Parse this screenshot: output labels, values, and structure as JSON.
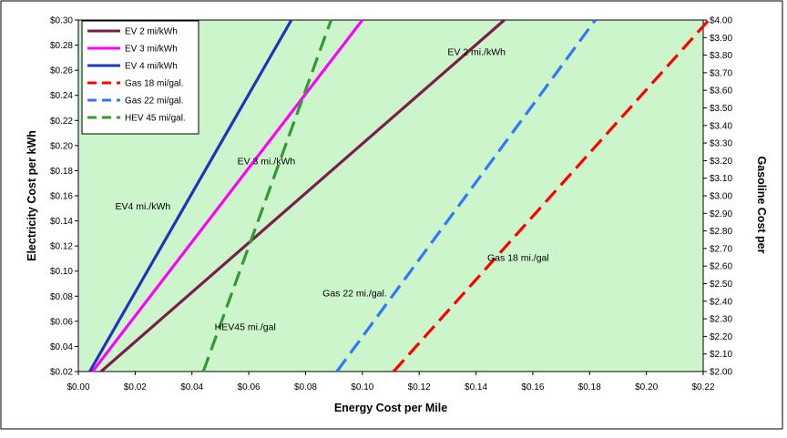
{
  "chart_data": {
    "type": "line",
    "xlabel": "Energy Cost per Mile",
    "ylabel_left": "Electricity Cost per kWh",
    "ylabel_right": "Gasoline Cost per",
    "xlim": [
      0,
      0.22
    ],
    "ylim_left": [
      0.02,
      0.3
    ],
    "ylim_right": [
      2.0,
      4.0
    ],
    "x_ticks": [
      "$0.00",
      "$0.02",
      "$0.04",
      "$0.06",
      "$0.08",
      "$0.10",
      "$0.12",
      "$0.14",
      "$0.16",
      "$0.18",
      "$0.20",
      "$0.22"
    ],
    "y_left_ticks": [
      "$0.02",
      "$0.04",
      "$0.06",
      "$0.08",
      "$0.10",
      "$0.12",
      "$0.14",
      "$0.16",
      "$0.18",
      "$0.20",
      "$0.22",
      "$0.24",
      "$0.26",
      "$0.28",
      "$0.30"
    ],
    "y_right_ticks": [
      "$2.00",
      "$2.10",
      "$2.20",
      "$2.30",
      "$2.40",
      "$2.50",
      "$2.60",
      "$2.70",
      "$2.80",
      "$2.90",
      "$3.00",
      "$3.10",
      "$3.20",
      "$3.30",
      "$3.40",
      "$3.50",
      "$3.60",
      "$3.70",
      "$3.80",
      "$3.90",
      "$4.00"
    ],
    "grid": false,
    "background": "#ccf5cc",
    "legend_position": "top-left",
    "series": [
      {
        "name": "EV 2 mi/kWh",
        "axis": "left",
        "style": "solid",
        "color": "#7a1f4a",
        "points": [
          [
            0.008,
            0.02
          ],
          [
            0.15,
            0.3
          ]
        ]
      },
      {
        "name": "EV 3 mi/kWh",
        "axis": "left",
        "style": "solid",
        "color": "#ff00ff",
        "points": [
          [
            0.005,
            0.02
          ],
          [
            0.1,
            0.3
          ]
        ]
      },
      {
        "name": "EV 4 mi/kWh",
        "axis": "left",
        "style": "solid",
        "color": "#2233bb",
        "points": [
          [
            0.004,
            0.02
          ],
          [
            0.075,
            0.3
          ]
        ]
      },
      {
        "name": "Gas 18 mi/gal.",
        "axis": "right",
        "style": "dashed",
        "color": "#ff0000",
        "points": [
          [
            0.111,
            2.0
          ],
          [
            0.222,
            4.0
          ]
        ]
      },
      {
        "name": "Gas 22 mi/gal.",
        "axis": "right",
        "style": "dashed",
        "color": "#3377ff",
        "points": [
          [
            0.091,
            2.0
          ],
          [
            0.182,
            4.0
          ]
        ]
      },
      {
        "name": "HEV 45 mi/gal.",
        "axis": "right",
        "style": "dashed",
        "color": "#339933",
        "points": [
          [
            0.044,
            2.0
          ],
          [
            0.089,
            4.0
          ]
        ]
      }
    ],
    "annotations": [
      {
        "text": "EV 2 mi./kWh",
        "x": 0.13,
        "y": 0.272
      },
      {
        "text": "EV 3 mi./kWh",
        "x": 0.056,
        "y": 0.185
      },
      {
        "text": "EV4 mi./kWh",
        "x": 0.013,
        "y": 0.149
      },
      {
        "text": "Gas 18 mi./gal",
        "x": 0.144,
        "y": 0.108
      },
      {
        "text": "Gas 22 mi./gal.",
        "x": 0.086,
        "y": 0.08
      },
      {
        "text": "HEV45 mi./gal",
        "x": 0.048,
        "y": 0.053
      }
    ]
  }
}
